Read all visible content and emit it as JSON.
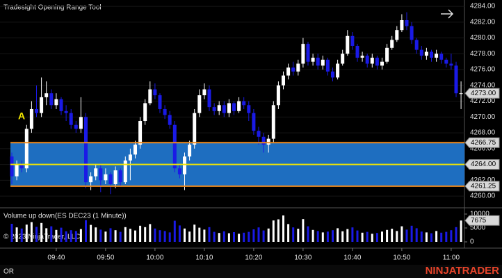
{
  "chart_data": {
    "type": "candlestick",
    "title": "Tradesight Opening Range Tool",
    "annotation": "A",
    "volume_title": "Volume up down(ES DEC23 (1 Minute))",
    "copyright": "© 2023 NinjaTrader, LLC",
    "footer_tab": "OR",
    "logo": "NINJATRADER",
    "up_color": "#ffffff",
    "down_color": "#1a1ae6",
    "range_color": "#1e6ec0",
    "range_edge_color": "#f08a1c",
    "range_mid_color": "#f2e600",
    "categories": [
      null,
      null,
      null,
      null,
      null,
      null,
      null,
      null,
      null,
      "09:40",
      null,
      null,
      null,
      null,
      null,
      null,
      null,
      null,
      null,
      "09:50",
      null,
      null,
      null,
      null,
      null,
      null,
      null,
      null,
      null,
      "10:00",
      null,
      null,
      null,
      null,
      null,
      null,
      null,
      null,
      null,
      "10:10",
      null,
      null,
      null,
      null,
      null,
      null,
      null,
      null,
      null,
      "10:20",
      null,
      null,
      null,
      null,
      null,
      null,
      null,
      null,
      null,
      "10:30",
      null,
      null,
      null,
      null,
      null,
      null,
      null,
      null,
      null,
      "10:40",
      null,
      null,
      null,
      null,
      null,
      null,
      null,
      null,
      null,
      "10:50",
      null,
      null,
      null,
      null,
      null,
      null,
      null,
      null,
      null,
      "11:00",
      null,
      null
    ],
    "open": [
      4265,
      4262.5,
      4264,
      4263.5,
      4268.5,
      4271,
      4270.5,
      4272.5,
      4273,
      4271.5,
      4272.25,
      4270.75,
      4270.5,
      4269,
      4268.5,
      4270,
      4261.75,
      4262.5,
      4263.5,
      4262,
      4262.75,
      4261.5,
      4263.25,
      4261.75,
      4264.5,
      4265.25,
      4266.5,
      4269.5,
      4271.75,
      4273.5,
      4272.75,
      4271,
      4270.25,
      4269,
      4263.5,
      4262.75,
      4265,
      4266.5,
      4270.5,
      4272.75,
      4273.5,
      4271.25,
      4270.75,
      4271.5,
      4270.5,
      4271.75,
      4270.75,
      4272,
      4271.5,
      4270.5,
      4268.25,
      4267.5,
      4266.5,
      4267.25,
      4271.5,
      4274,
      4275.25,
      4276.25,
      4275.75,
      4276.75,
      4279.25,
      4277,
      4277.5,
      4276.5,
      4277.25,
      4275.75,
      4275,
      4276.75,
      4278,
      4280.25,
      4279,
      4277.5,
      4277.75,
      4276.75,
      4277.5,
      4276.5,
      4277,
      4278.75,
      4279.75,
      4281,
      4282.25,
      4281.5,
      4279.75,
      4278.5,
      4277.75,
      4278.25,
      4277.5,
      4278,
      4277.25,
      4276.75,
      4276.5,
      4273
    ],
    "high": [
      4265.5,
      4264.5,
      4264.5,
      4269,
      4272,
      4274,
      4275,
      4274.5,
      4273.5,
      4273,
      4272.5,
      4271.5,
      4271,
      4269.5,
      4272.5,
      4270.5,
      4263,
      4264,
      4264,
      4263.5,
      4263,
      4263.75,
      4263.5,
      4265,
      4266,
      4267,
      4270,
      4272.25,
      4274.5,
      4274.25,
      4273,
      4271.5,
      4270.75,
      4269.5,
      4264,
      4265.5,
      4267,
      4271,
      4273.5,
      4274.25,
      4274,
      4271.75,
      4272,
      4272,
      4272.25,
      4272,
      4272.5,
      4272.5,
      4272,
      4271,
      4268.75,
      4268,
      4267.75,
      4272,
      4274.5,
      4275.75,
      4276.75,
      4277,
      4277.25,
      4280,
      4279.5,
      4278,
      4278,
      4277.75,
      4277.5,
      4276.25,
      4277.25,
      4278.5,
      4281,
      4280.75,
      4279.25,
      4278.25,
      4278,
      4278,
      4277.75,
      4277.5,
      4279.25,
      4280.25,
      4281.5,
      4283,
      4283.25,
      4282,
      4280,
      4279,
      4278.75,
      4278.5,
      4278.5,
      4278.25,
      4277.5,
      4278,
      4277,
      4274.5
    ],
    "low": [
      4261.5,
      4262,
      4263,
      4263,
      4268,
      4270,
      4270,
      4271.5,
      4271,
      4271,
      4270.25,
      4269.5,
      4268.5,
      4268,
      4268,
      4261,
      4260.75,
      4262,
      4260.5,
      4261.5,
      4260.25,
      4261,
      4261.25,
      4261.5,
      4262,
      4264.75,
      4266,
      4269,
      4271.5,
      4272.25,
      4270.5,
      4269.75,
      4268.5,
      4263,
      4262.25,
      4260.75,
      4264.5,
      4266,
      4270,
      4272.25,
      4270.75,
      4270.25,
      4270.25,
      4270,
      4270,
      4270.25,
      4270.5,
      4271,
      4269.5,
      4267.75,
      4266.5,
      4265.5,
      4265.5,
      4266.75,
      4271,
      4273.5,
      4274.75,
      4275.25,
      4275.25,
      4276.25,
      4276.5,
      4276.5,
      4276,
      4276,
      4275.25,
      4274.5,
      4274.75,
      4276.5,
      4277.75,
      4278.5,
      4277,
      4277,
      4276.25,
      4276.25,
      4276,
      4276,
      4276.75,
      4278.5,
      4279.5,
      4280.75,
      4281,
      4279.25,
      4278,
      4277.25,
      4277.25,
      4277,
      4277,
      4276.75,
      4276.25,
      4276,
      4272.5,
      4271
    ],
    "close": [
      4262.5,
      4264,
      4263.5,
      4268.5,
      4271,
      4270.5,
      4272.5,
      4273,
      4271.5,
      4272.25,
      4270.75,
      4270.5,
      4269,
      4268.5,
      4270,
      4261.75,
      4262.5,
      4263.5,
      4262,
      4262.75,
      4261.5,
      4263.25,
      4261.75,
      4264.5,
      4265.25,
      4266.5,
      4269.5,
      4271.75,
      4273.5,
      4272.75,
      4271,
      4270.25,
      4269,
      4263.5,
      4262.75,
      4265,
      4266.5,
      4270.5,
      4272.75,
      4273.5,
      4271.25,
      4270.75,
      4271.5,
      4270.5,
      4271.75,
      4270.75,
      4272,
      4271.5,
      4270.5,
      4268.25,
      4267.5,
      4266.5,
      4267.25,
      4271.5,
      4274,
      4275.25,
      4276.25,
      4275.75,
      4276.75,
      4279.25,
      4277,
      4277.5,
      4276.5,
      4277.25,
      4275.75,
      4275,
      4276.75,
      4278,
      4280.25,
      4279,
      4277.5,
      4277.75,
      4276.75,
      4277.5,
      4276.5,
      4277,
      4278.75,
      4279.75,
      4281,
      4282.25,
      4281.5,
      4279.75,
      4278.5,
      4277.75,
      4278.25,
      4277.5,
      4278,
      4277.25,
      4276.75,
      4276.5,
      4273,
      4273
    ],
    "volume": [
      6500,
      5200,
      4800,
      6200,
      7100,
      5400,
      6800,
      4900,
      5600,
      4300,
      5100,
      3800,
      4200,
      3900,
      4600,
      7800,
      6100,
      5200,
      4400,
      3700,
      4900,
      4200,
      3600,
      5300,
      4700,
      4100,
      5800,
      5300,
      6400,
      4800,
      4200,
      3900,
      3400,
      7600,
      5900,
      4800,
      3700,
      6200,
      5100,
      4400,
      5300,
      3600,
      3200,
      3800,
      3100,
      3500,
      2900,
      3300,
      3600,
      4500,
      5200,
      4100,
      4800,
      7700,
      8100,
      9500,
      6400,
      5200,
      4700,
      8200,
      5600,
      4300,
      3900,
      3400,
      3700,
      4200,
      4900,
      3800,
      4600,
      5200,
      4100,
      3300,
      3600,
      2900,
      3200,
      3700,
      4300,
      4700,
      3900,
      5600,
      4400,
      5800,
      4900,
      3700,
      3400,
      3100,
      3900,
      3300,
      3600,
      4200,
      5300,
      7675
    ],
    "ylim": [
      4258.6,
      4284.8
    ],
    "yticks": [
      {
        "value": 4260,
        "label": "4260.00"
      },
      {
        "value": 4262,
        "label": "4262.00"
      },
      {
        "value": 4264,
        "label": "4264.00"
      },
      {
        "value": 4266,
        "label": "4266.00"
      },
      {
        "value": 4268,
        "label": "4268.00"
      },
      {
        "value": 4270,
        "label": "4270.00"
      },
      {
        "value": 4272,
        "label": "4272.00"
      },
      {
        "value": 4274,
        "label": "4274.00"
      },
      {
        "value": 4276,
        "label": "4276.00"
      },
      {
        "value": 4278,
        "label": "4278.00"
      },
      {
        "value": 4280,
        "label": "4280.00"
      },
      {
        "value": 4282,
        "label": "4282.00"
      },
      {
        "value": 4284,
        "label": "4284.00"
      }
    ],
    "volume_ylim": [
      0,
      10000
    ],
    "volume_yticks": [
      0,
      5000,
      10000
    ],
    "range_high": {
      "value": 4266.75,
      "label": "4266.75"
    },
    "range_mid": {
      "value": 4264,
      "label": "4264.00"
    },
    "range_low": {
      "value": 4261.25,
      "label": "4261.25"
    },
    "last_price": {
      "value": 4273,
      "label": "4273.00"
    },
    "last_volume": 7675
  }
}
